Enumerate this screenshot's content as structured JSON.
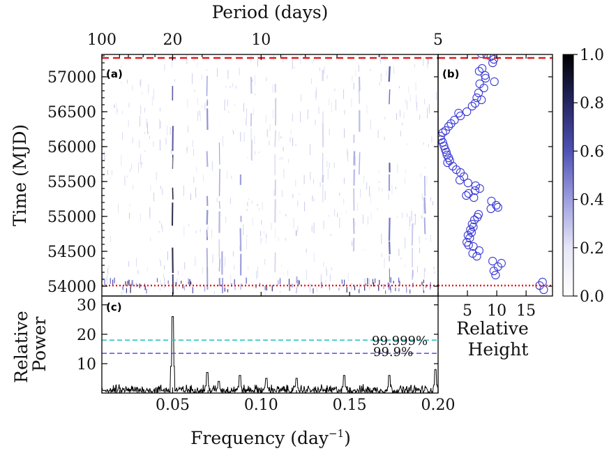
{
  "chart_data": [
    {
      "panel": "(a)",
      "type": "heatmap",
      "xlabel": "Frequency (day⁻¹)",
      "xlabel_base": "Frequency (day",
      "xlabel_sup": "−1",
      "xlabel_close": ")",
      "top_axis_label": "Period (days)",
      "ylabel": "Time (MJD)",
      "xlim": [
        0.01,
        0.2
      ],
      "ylim": [
        53860,
        57320
      ],
      "x_ticks": [
        0.05,
        0.1,
        0.15,
        0.2
      ],
      "x_tick_labels": [
        "0.05",
        "0.10",
        "0.15",
        "0.20"
      ],
      "top_ticks": [
        100,
        20,
        10,
        5
      ],
      "top_tick_labels": [
        "100",
        "20",
        "10",
        "5"
      ],
      "y_ticks": [
        54000,
        54500,
        55000,
        55500,
        56000,
        56500,
        57000
      ],
      "y_tick_labels": [
        "54000",
        "54500",
        "55000",
        "55500",
        "56000",
        "56500",
        "57000"
      ],
      "hlines": [
        {
          "y": 57270,
          "style": "dashed",
          "color": "#e31a1c"
        },
        {
          "y": 54010,
          "style": "dotted",
          "color": "#e31a1c"
        }
      ],
      "colorbar": {
        "range": [
          0.0,
          1.0
        ],
        "ticks": [
          0.0,
          0.2,
          0.4,
          0.6,
          0.8,
          1.0
        ],
        "tick_labels": [
          "0.0",
          "0.2",
          "0.4",
          "0.6",
          "0.8",
          "1.0"
        ],
        "colors": [
          "#ffffff",
          "#bcbde8",
          "#6264c4",
          "#2f2f78",
          "#000000"
        ]
      },
      "features": [
        {
          "freq": 0.05,
          "t_start": 53880,
          "t_end": 57290,
          "intensity": 0.95
        },
        {
          "freq": 0.0695,
          "t_start": 53950,
          "t_end": 57100,
          "intensity": 0.45
        },
        {
          "freq": 0.0765,
          "t_start": 54000,
          "t_end": 56300,
          "intensity": 0.4
        },
        {
          "freq": 0.078,
          "t_start": 53900,
          "t_end": 54500,
          "intensity": 0.55
        },
        {
          "freq": 0.0885,
          "t_start": 53950,
          "t_end": 55600,
          "intensity": 0.4
        },
        {
          "freq": 0.0945,
          "t_start": 55800,
          "t_end": 57000,
          "intensity": 0.3
        },
        {
          "freq": 0.108,
          "t_start": 54200,
          "t_end": 56900,
          "intensity": 0.25
        },
        {
          "freq": 0.12,
          "t_start": 53900,
          "t_end": 54800,
          "intensity": 0.4
        },
        {
          "freq": 0.135,
          "t_start": 55200,
          "t_end": 57100,
          "intensity": 0.25
        },
        {
          "freq": 0.1525,
          "t_start": 54500,
          "t_end": 56800,
          "intensity": 0.35
        },
        {
          "freq": 0.1555,
          "t_start": 55600,
          "t_end": 57000,
          "intensity": 0.3
        },
        {
          "freq": 0.1725,
          "t_start": 53950,
          "t_end": 57150,
          "intensity": 0.65
        },
        {
          "freq": 0.1855,
          "t_start": 53900,
          "t_end": 54900,
          "intensity": 0.3
        },
        {
          "freq": 0.1925,
          "t_start": 54400,
          "t_end": 55700,
          "intensity": 0.35
        }
      ]
    },
    {
      "panel": "(b)",
      "type": "scatter",
      "xlabel": "Relative Height",
      "xlabel_lines": [
        "Relative",
        "Height"
      ],
      "xlim": [
        0,
        19.5
      ],
      "ylim": [
        53860,
        57320
      ],
      "x_ticks": [
        5,
        10,
        15
      ],
      "x_tick_labels": [
        "5",
        "10",
        "15"
      ],
      "marker_color": "#3b3bd6",
      "hlines": [
        {
          "y": 57270,
          "style": "dashed",
          "color": "#e31a1c"
        },
        {
          "y": 54010,
          "style": "dotted",
          "color": "#e31a1c"
        }
      ],
      "points": [
        [
          7.4,
          57330
        ],
        [
          8.3,
          57320
        ],
        [
          9.0,
          57290
        ],
        [
          9.5,
          57250
        ],
        [
          9.3,
          57200
        ],
        [
          7.5,
          57120
        ],
        [
          7.0,
          57080
        ],
        [
          8.0,
          57020
        ],
        [
          8.1,
          56980
        ],
        [
          9.6,
          56930
        ],
        [
          7.1,
          56900
        ],
        [
          7.8,
          56840
        ],
        [
          6.9,
          56770
        ],
        [
          6.6,
          56700
        ],
        [
          7.4,
          56670
        ],
        [
          6.3,
          56620
        ],
        [
          5.8,
          56580
        ],
        [
          4.9,
          56500
        ],
        [
          3.5,
          56480
        ],
        [
          3.8,
          56440
        ],
        [
          2.8,
          56380
        ],
        [
          2.2,
          56330
        ],
        [
          1.8,
          56290
        ],
        [
          1.3,
          56230
        ],
        [
          0.8,
          56200
        ],
        [
          0.4,
          56150
        ],
        [
          0.5,
          56100
        ],
        [
          0.8,
          56060
        ],
        [
          1.0,
          56010
        ],
        [
          1.2,
          55960
        ],
        [
          1.4,
          55920
        ],
        [
          1.5,
          55880
        ],
        [
          1.8,
          55840
        ],
        [
          2.0,
          55800
        ],
        [
          1.6,
          55770
        ],
        [
          2.5,
          55720
        ],
        [
          3.1,
          55670
        ],
        [
          3.8,
          55630
        ],
        [
          4.4,
          55570
        ],
        [
          3.7,
          55520
        ],
        [
          5.1,
          55480
        ],
        [
          6.4,
          55440
        ],
        [
          7.1,
          55400
        ],
        [
          6.3,
          55370
        ],
        [
          5.2,
          55330
        ],
        [
          4.8,
          55300
        ],
        [
          6.1,
          55270
        ],
        [
          9.1,
          55220
        ],
        [
          9.9,
          55160
        ],
        [
          10.2,
          55130
        ],
        [
          9.0,
          55110
        ],
        [
          6.9,
          55030
        ],
        [
          6.7,
          54990
        ],
        [
          6.2,
          54950
        ],
        [
          5.8,
          54890
        ],
        [
          6.0,
          54850
        ],
        [
          5.5,
          54810
        ],
        [
          5.7,
          54770
        ],
        [
          5.1,
          54730
        ],
        [
          5.4,
          54690
        ],
        [
          4.9,
          54630
        ],
        [
          5.2,
          54590
        ],
        [
          6.0,
          54570
        ],
        [
          7.0,
          54510
        ],
        [
          5.9,
          54470
        ],
        [
          6.6,
          54430
        ],
        [
          9.3,
          54360
        ],
        [
          10.8,
          54330
        ],
        [
          10.2,
          54280
        ],
        [
          9.5,
          54220
        ],
        [
          9.8,
          54160
        ],
        [
          17.8,
          54060
        ],
        [
          17.3,
          54010
        ],
        [
          18.0,
          53950
        ]
      ]
    },
    {
      "panel": "(c)",
      "type": "line",
      "xlabel": "Frequency (day⁻¹)",
      "ylabel": "Relative Power",
      "ylabel_lines": [
        "Relative",
        "Power"
      ],
      "xlim": [
        0.01,
        0.2
      ],
      "ylim": [
        0,
        33
      ],
      "x_ticks": [
        0.05,
        0.1,
        0.15,
        0.2
      ],
      "x_tick_labels": [
        "0.05",
        "0.10",
        "0.15",
        "0.20"
      ],
      "y_ticks": [
        10,
        20,
        30
      ],
      "y_tick_labels": [
        "10",
        "20",
        "30"
      ],
      "noise_level": 2.5,
      "peaks": [
        {
          "freq": 0.05,
          "power": 26
        },
        {
          "freq": 0.0695,
          "power": 7
        },
        {
          "freq": 0.076,
          "power": 4
        },
        {
          "freq": 0.088,
          "power": 6
        },
        {
          "freq": 0.103,
          "power": 5
        },
        {
          "freq": 0.12,
          "power": 5
        },
        {
          "freq": 0.147,
          "power": 6
        },
        {
          "freq": 0.1725,
          "power": 6
        },
        {
          "freq": 0.1985,
          "power": 8
        }
      ],
      "thresholds": [
        {
          "label": "99.999%",
          "value": 18,
          "color": "#2ec4c4"
        },
        {
          "label": "99.9%",
          "value": 13.5,
          "color": "#5a4be0"
        }
      ]
    }
  ]
}
